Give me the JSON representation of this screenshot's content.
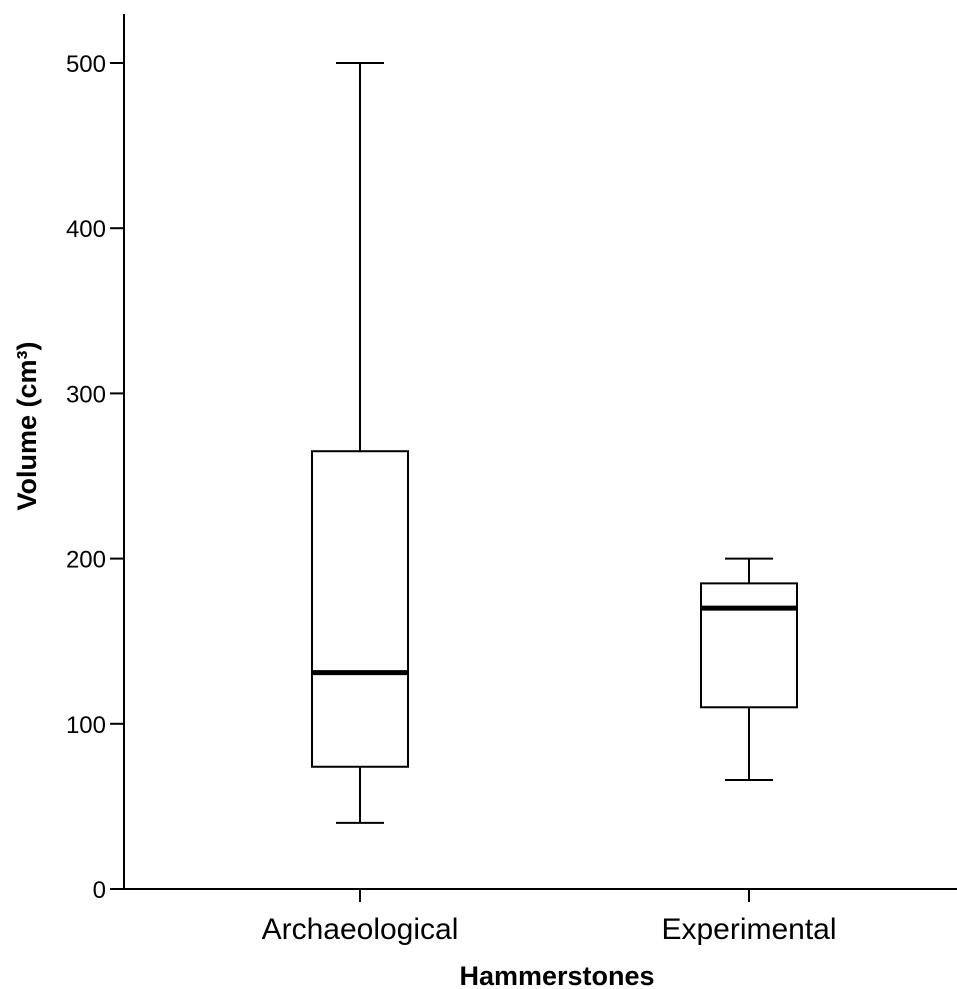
{
  "chart_data": {
    "type": "box",
    "title": "",
    "xlabel": "Hammerstones",
    "ylabel": "Volume (cm³)",
    "ylim": [
      0,
      500
    ],
    "yticks": [
      0,
      100,
      200,
      300,
      400,
      500
    ],
    "grid": false,
    "categories": [
      "Archaeological",
      "Experimental"
    ],
    "boxes": [
      {
        "category": "Archaeological",
        "min": 40,
        "q1": 74,
        "median": 131,
        "q3": 265,
        "max": 500
      },
      {
        "category": "Experimental",
        "min": 66,
        "q1": 110,
        "median": 170,
        "q3": 185,
        "max": 200
      }
    ]
  },
  "colors": {
    "line": "#000000",
    "box_fill": "#ffffff",
    "background": "#ffffff"
  }
}
